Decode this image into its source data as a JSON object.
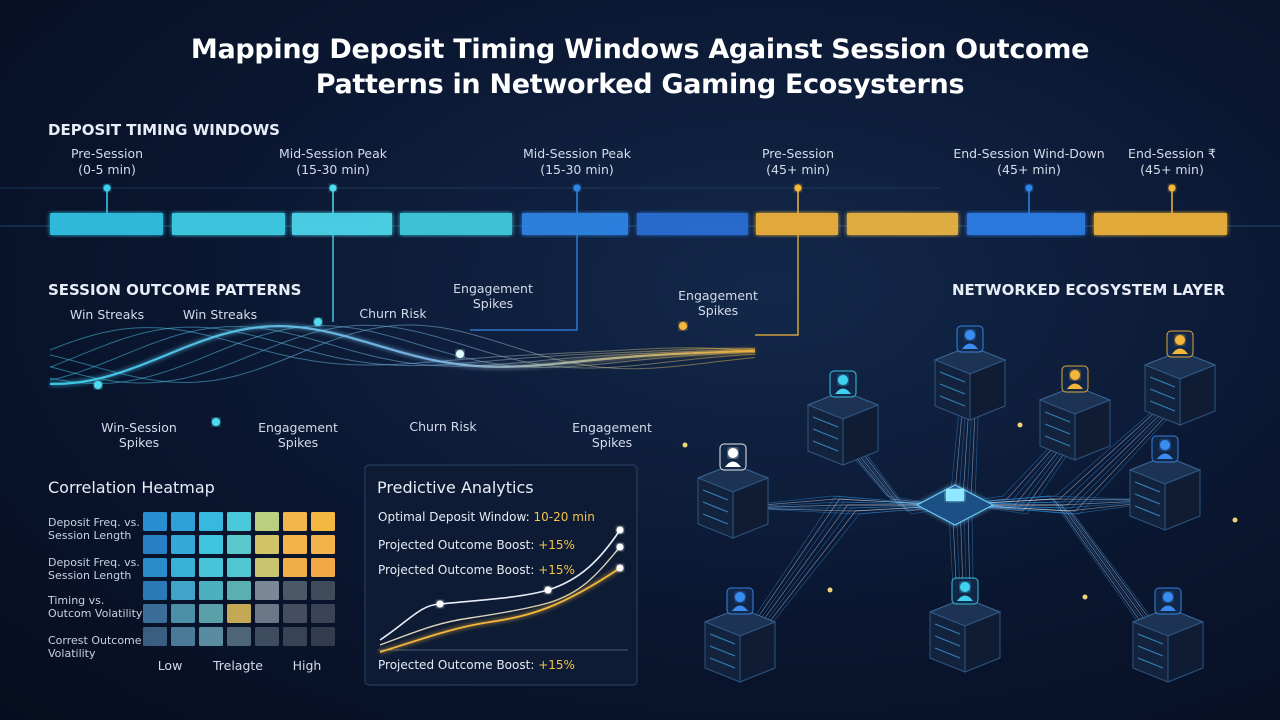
{
  "title": [
    "Mapping Deposit Timing Windows Against Session Outcome",
    "Patterns in Networked Gaming Ecosysterns"
  ],
  "timing": {
    "heading": "DEPOSIT TIMING WINDOWS",
    "windows": [
      {
        "label": "Pre-Session",
        "range": "(0-5 min)"
      },
      {
        "label": "Mid-Session Peak",
        "range": "(15-30 min)"
      },
      {
        "label": "Mid-Session Peak",
        "range": "(15-30 min)"
      },
      {
        "label": "Pre-Session",
        "range": "(45+ min)"
      },
      {
        "label": "End-Session Wind-Down",
        "range": "(45+ min)"
      },
      {
        "label": "End-Session ₹",
        "range": "(45+ min)"
      }
    ]
  },
  "outcomes": {
    "heading": "SESSION OUTCOME PATTERNS",
    "top": [
      "Win Streaks",
      "Win Streaks",
      "Churn Risk",
      "Engagement Spikes",
      "Engagement Spikes"
    ],
    "bottom": [
      "Win-Session Spikes",
      "Engagement Spikes",
      "Churn Risk",
      "Engagement Spikes"
    ]
  },
  "network": {
    "heading": "NETWORKED ECOSYSTEM LAYER"
  },
  "heatmap": {
    "title": "Correlation Heatmap",
    "rows": [
      "Deposit Freq. vs. Session Length",
      "Deposit Freq. vs. Session Length",
      "Timing vs. Outcom Volatility",
      "Correst Outcome Volatility"
    ],
    "legend": [
      "Low",
      "Trelagte",
      "High"
    ]
  },
  "analytics": {
    "title": "Predictive Analytics",
    "lines": [
      {
        "label": "Optimal Deposit Window:",
        "value": "10-20 min"
      },
      {
        "label": "Projected Outcome Boost:",
        "value": "+15%"
      },
      {
        "label": "Projected Outcome Boost:",
        "value": "+15%"
      }
    ],
    "footer": {
      "label": "Projected Outcome Boost:",
      "value": "+15%"
    }
  }
}
